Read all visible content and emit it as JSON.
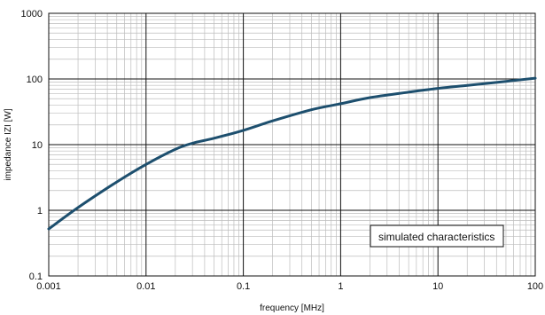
{
  "chart_data": {
    "type": "line",
    "xscale": "log",
    "yscale": "log",
    "xlim": [
      0.001,
      100
    ],
    "ylim": [
      0.1,
      1000
    ],
    "xlabel": "frequency [MHz]",
    "ylabel": "impedance IZI [W]",
    "x_ticks": [
      "0.001",
      "0.01",
      "0.1",
      "1",
      "10",
      "100"
    ],
    "y_ticks": [
      "0.1",
      "1",
      "10",
      "100",
      "1000"
    ],
    "grid": true,
    "annotation": "simulated characteristics",
    "series": [
      {
        "x": [
          0.001,
          0.002,
          0.005,
          0.01,
          0.02,
          0.03,
          0.05,
          0.1,
          0.2,
          0.5,
          1,
          2,
          5,
          10,
          20,
          50,
          100
        ],
        "y": [
          0.52,
          1.1,
          2.7,
          5.0,
          8.5,
          10.5,
          12.5,
          16.5,
          23,
          34,
          42,
          52,
          63,
          72,
          80,
          92,
          103
        ]
      }
    ],
    "colors": {
      "line": "#1d4f6e",
      "major_grid": "#111111",
      "minor_grid": "#bdbdbd"
    }
  }
}
